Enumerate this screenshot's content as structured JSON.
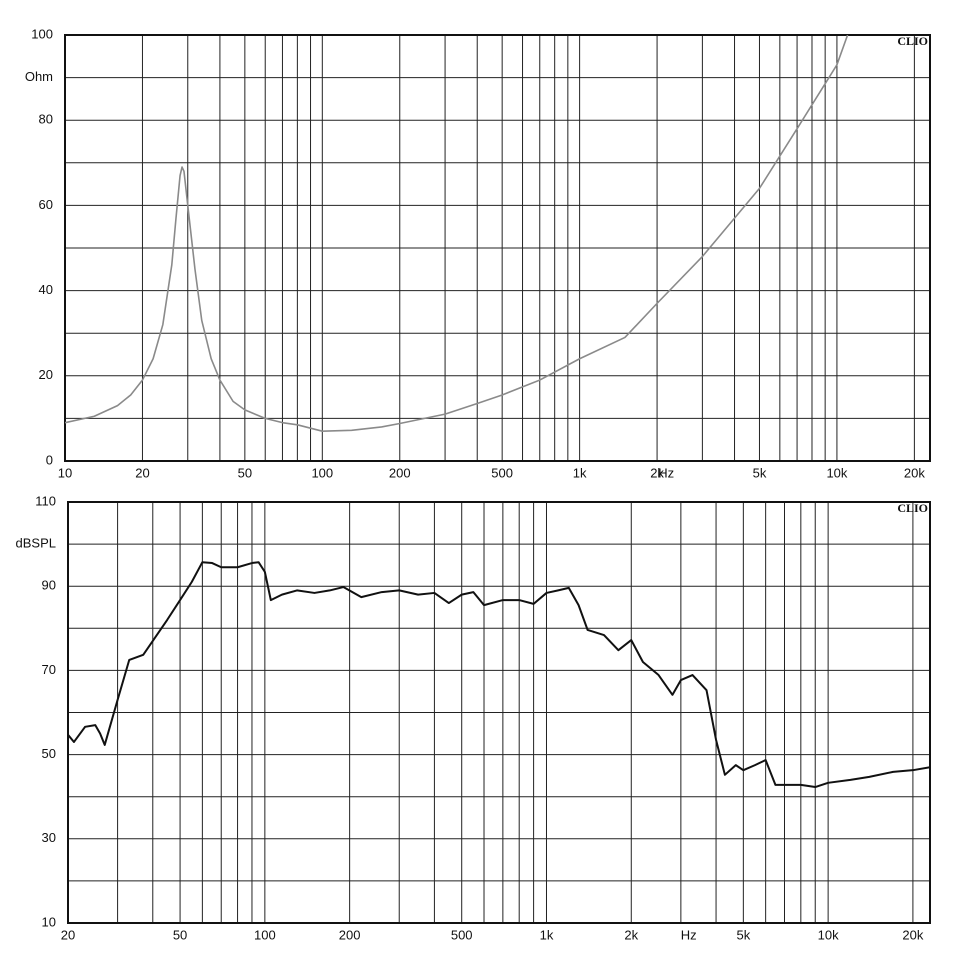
{
  "chart_data": [
    {
      "type": "line",
      "log_x": true,
      "grid": true,
      "watermark": "CLIO",
      "x_unit": "Hz",
      "y_unit": "Ohm",
      "color": "#8a8a8a",
      "xlim": [
        10,
        23000
      ],
      "ylim": [
        0,
        100
      ],
      "xticks": [
        10,
        20,
        50,
        100,
        200,
        500,
        {
          "value": 1000,
          "label": "1k"
        },
        {
          "value": 2000,
          "label": "2k"
        },
        {
          "value": 5000,
          "label": "5k"
        },
        {
          "value": 10000,
          "label": "10k"
        },
        {
          "value": 20000,
          "label": "20k"
        }
      ],
      "x_minor_ticks": [
        30,
        40,
        60,
        70,
        80,
        90,
        300,
        400,
        600,
        700,
        800,
        900,
        3000,
        4000,
        6000,
        7000,
        8000,
        9000
      ],
      "yticks": [
        0,
        20,
        40,
        60,
        80,
        100
      ],
      "y_minor_ticks": [
        10,
        30,
        50,
        70,
        90
      ],
      "x": [
        10,
        13,
        16,
        18,
        20,
        22,
        24,
        26,
        27,
        28,
        28.5,
        29,
        30,
        32,
        34,
        37,
        40,
        45,
        50,
        60,
        70,
        80,
        100,
        130,
        170,
        200,
        300,
        400,
        500,
        700,
        1000,
        1500,
        2000,
        3000,
        5000,
        7000,
        10000,
        11000
      ],
      "values": [
        9,
        10.5,
        13,
        15.5,
        19,
        24,
        32,
        46,
        57,
        67,
        69,
        68,
        60,
        45,
        33,
        24,
        19,
        14,
        12,
        10,
        9,
        8.5,
        7,
        7.2,
        8,
        8.8,
        11,
        13.5,
        15.5,
        19,
        24,
        29,
        37,
        48,
        64,
        78,
        93,
        100
      ]
    },
    {
      "type": "line",
      "log_x": true,
      "grid": true,
      "watermark": "CLIO",
      "x_unit": "Hz",
      "y_unit": "dBSPL",
      "color": "#111111",
      "xlim": [
        20,
        23000
      ],
      "ylim": [
        10,
        110
      ],
      "xticks": [
        20,
        50,
        100,
        200,
        500,
        {
          "value": 1000,
          "label": "1k"
        },
        {
          "value": 2000,
          "label": "2k"
        },
        {
          "value": 5000,
          "label": "5k"
        },
        {
          "value": 10000,
          "label": "10k"
        },
        {
          "value": 20000,
          "label": "20k"
        }
      ],
      "x_minor_ticks": [
        30,
        40,
        60,
        70,
        80,
        90,
        300,
        400,
        600,
        700,
        800,
        900,
        3000,
        4000,
        6000,
        7000,
        8000,
        9000
      ],
      "yticks": [
        10,
        30,
        50,
        70,
        90,
        110
      ],
      "y_minor_ticks": [
        20,
        40,
        60,
        80,
        100
      ],
      "x": [
        20,
        21,
        23,
        25,
        26,
        27,
        30,
        33,
        37,
        40,
        45,
        50,
        55,
        60,
        65,
        70,
        80,
        90,
        95,
        100,
        105,
        115,
        130,
        150,
        170,
        190,
        220,
        260,
        300,
        350,
        400,
        450,
        500,
        550,
        600,
        700,
        800,
        900,
        1000,
        1100,
        1200,
        1300,
        1400,
        1600,
        1800,
        2000,
        2200,
        2500,
        2800,
        3000,
        3300,
        3700,
        4000,
        4300,
        4700,
        5000,
        5500,
        6000,
        6500,
        8000,
        9000,
        10000,
        12000,
        14000,
        17000,
        20000,
        23000
      ],
      "values": [
        54.7,
        53,
        56.6,
        57,
        55,
        52.3,
        63,
        72.5,
        73.7,
        77,
        82,
        86.7,
        91,
        95.7,
        95.5,
        94.5,
        94.5,
        95.5,
        95.7,
        93.4,
        86.7,
        88,
        89,
        88.4,
        89,
        89.8,
        87.4,
        88.6,
        89,
        88,
        88.4,
        86,
        88,
        88.6,
        85.5,
        86.7,
        86.7,
        85.8,
        88.4,
        89,
        89.6,
        85.5,
        79.6,
        78.4,
        74.8,
        77.2,
        72,
        68.9,
        64.2,
        67.7,
        68.9,
        65.3,
        53.5,
        45.2,
        47.5,
        46.3,
        47.5,
        48.7,
        42.8,
        42.8,
        42.3,
        43.3,
        44,
        44.7,
        45.9,
        46.3,
        47
      ]
    }
  ]
}
